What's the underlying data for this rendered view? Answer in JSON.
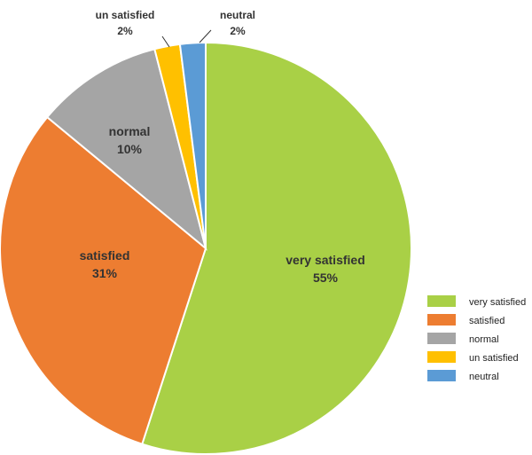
{
  "chart_data": {
    "type": "pie",
    "categories": [
      "very satisfied",
      "satisfied",
      "normal",
      "un satisfied",
      "neutral"
    ],
    "values": [
      55,
      31,
      10,
      2,
      2
    ],
    "value_labels": [
      "55%",
      "31%",
      "10%",
      "2%",
      "2%"
    ],
    "colors": [
      "#a9d046",
      "#ed7d31",
      "#a5a5a5",
      "#ffc000",
      "#5b9bd5"
    ],
    "legend": {
      "position": "right",
      "entries": [
        "very satisfied",
        "satisfied",
        "normal",
        "un satisfied",
        "neutral"
      ]
    }
  }
}
